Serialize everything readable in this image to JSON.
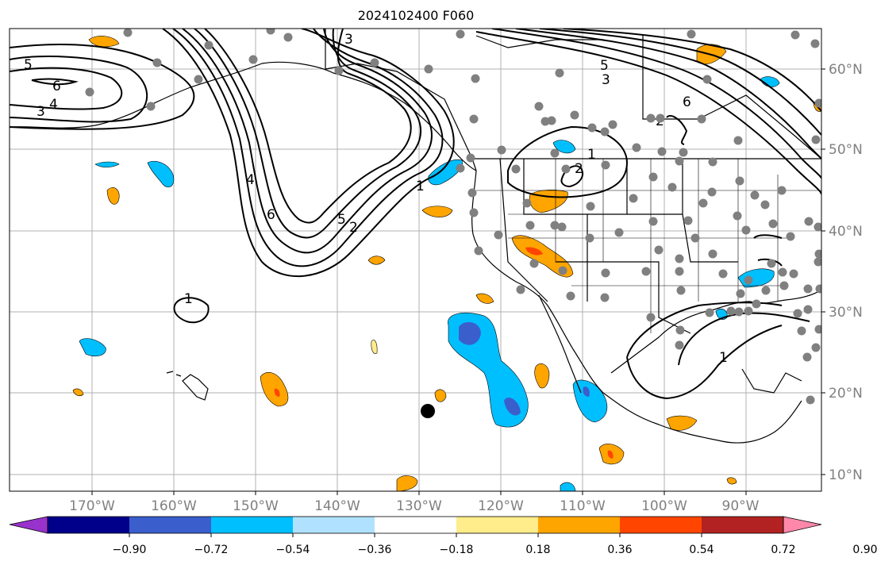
{
  "title": "2024102400 F060",
  "longitude_labels": [
    "170°W",
    "160°W",
    "150°W",
    "140°W",
    "130°W",
    "120°W",
    "110°W",
    "100°W",
    "90°W"
  ],
  "latitude_labels": [
    "60°N",
    "50°N",
    "40°N",
    "30°N",
    "20°N",
    "10°N"
  ],
  "colorbar": {
    "ticks": [
      "−0.90",
      "−0.72",
      "−0.54",
      "−0.36",
      "−0.18",
      "0.18",
      "0.36",
      "0.54",
      "0.72",
      "0.90"
    ],
    "colors": [
      "#9932cc",
      "#00008b",
      "#3a5fcd",
      "#00bfff",
      "#b0e2ff",
      "#ffffff",
      "#ffec8b",
      "#ffa500",
      "#ff4500",
      "#b22222",
      "#ff88aa"
    ]
  },
  "contour_labels": [
    "5",
    "6",
    "4",
    "3",
    "3",
    "6",
    "5",
    "4",
    "2",
    "1",
    "1",
    "2",
    "6",
    "5",
    "2",
    "3",
    "1",
    "1"
  ],
  "colors": {
    "land_line": "#000000",
    "grid": "#b0b0b0",
    "station_dot": "#808080",
    "marker": "#000000"
  }
}
